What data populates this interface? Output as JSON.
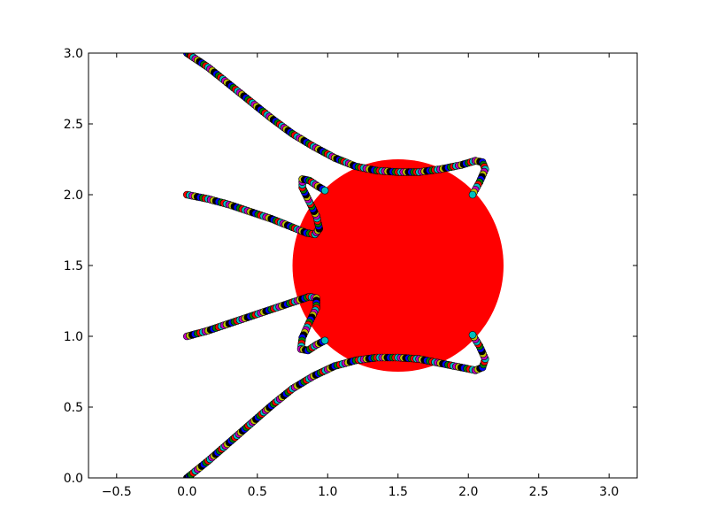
{
  "chart_data": {
    "type": "scatter",
    "title": "",
    "xlabel": "",
    "ylabel": "",
    "xlim": [
      -0.7,
      3.2
    ],
    "ylim": [
      0.0,
      3.0
    ],
    "xticks": [
      -0.5,
      0.0,
      0.5,
      1.0,
      1.5,
      2.0,
      2.5,
      3.0
    ],
    "xtick_labels": [
      "−0.5",
      "0.0",
      "0.5",
      "1.0",
      "1.5",
      "2.0",
      "2.5",
      "3.0"
    ],
    "yticks": [
      0.0,
      0.5,
      1.0,
      1.5,
      2.0,
      2.5,
      3.0
    ],
    "ytick_labels": [
      "0.0",
      "0.5",
      "1.0",
      "1.5",
      "2.0",
      "2.5",
      "3.0"
    ],
    "grid": false,
    "legend": null,
    "obstacle": {
      "shape": "circle",
      "center": [
        1.5,
        1.5
      ],
      "radius": 0.75,
      "color": "#ff0000"
    },
    "marker_colors": [
      "#0000ff",
      "#008000",
      "#ff0000",
      "#00bfbf",
      "#bf00bf",
      "#bfbf00",
      "#000000"
    ],
    "end_marker_color": "#00bfbf",
    "trajectories": [
      {
        "points": [
          [
            0.0,
            3.0
          ],
          [
            0.15,
            2.9
          ],
          [
            0.3,
            2.78
          ],
          [
            0.45,
            2.66
          ],
          [
            0.6,
            2.54
          ],
          [
            0.75,
            2.43
          ],
          [
            0.9,
            2.34
          ],
          [
            1.05,
            2.26
          ],
          [
            1.2,
            2.2
          ],
          [
            1.35,
            2.17
          ],
          [
            1.5,
            2.16
          ],
          [
            1.65,
            2.16
          ],
          [
            1.8,
            2.18
          ],
          [
            1.95,
            2.21
          ],
          [
            2.05,
            2.24
          ],
          [
            2.1,
            2.23
          ],
          [
            2.12,
            2.18
          ],
          [
            2.08,
            2.09
          ],
          [
            2.03,
            2.0
          ]
        ],
        "end": [
          2.03,
          2.0
        ]
      },
      {
        "points": [
          [
            0.0,
            2.0
          ],
          [
            0.15,
            1.97
          ],
          [
            0.3,
            1.93
          ],
          [
            0.45,
            1.88
          ],
          [
            0.6,
            1.83
          ],
          [
            0.75,
            1.77
          ],
          [
            0.85,
            1.73
          ],
          [
            0.91,
            1.72
          ],
          [
            0.94,
            1.76
          ],
          [
            0.92,
            1.85
          ],
          [
            0.87,
            1.95
          ],
          [
            0.82,
            2.05
          ],
          [
            0.82,
            2.11
          ],
          [
            0.87,
            2.1
          ],
          [
            0.93,
            2.06
          ],
          [
            0.98,
            2.03
          ]
        ],
        "end": [
          0.98,
          2.03
        ]
      },
      {
        "points": [
          [
            0.0,
            1.0
          ],
          [
            0.15,
            1.04
          ],
          [
            0.3,
            1.09
          ],
          [
            0.45,
            1.14
          ],
          [
            0.6,
            1.19
          ],
          [
            0.75,
            1.24
          ],
          [
            0.87,
            1.28
          ],
          [
            0.92,
            1.27
          ],
          [
            0.92,
            1.2
          ],
          [
            0.87,
            1.1
          ],
          [
            0.82,
            0.99
          ],
          [
            0.81,
            0.91
          ],
          [
            0.86,
            0.9
          ],
          [
            0.92,
            0.94
          ],
          [
            0.98,
            0.97
          ]
        ],
        "end": [
          0.98,
          0.97
        ]
      },
      {
        "points": [
          [
            0.0,
            0.0
          ],
          [
            0.15,
            0.12
          ],
          [
            0.3,
            0.25
          ],
          [
            0.45,
            0.38
          ],
          [
            0.6,
            0.51
          ],
          [
            0.75,
            0.63
          ],
          [
            0.9,
            0.72
          ],
          [
            1.05,
            0.79
          ],
          [
            1.2,
            0.83
          ],
          [
            1.35,
            0.85
          ],
          [
            1.5,
            0.85
          ],
          [
            1.65,
            0.84
          ],
          [
            1.8,
            0.81
          ],
          [
            1.95,
            0.78
          ],
          [
            2.05,
            0.76
          ],
          [
            2.1,
            0.78
          ],
          [
            2.12,
            0.84
          ],
          [
            2.08,
            0.93
          ],
          [
            2.03,
            1.01
          ]
        ],
        "end": [
          2.03,
          1.01
        ]
      }
    ]
  }
}
